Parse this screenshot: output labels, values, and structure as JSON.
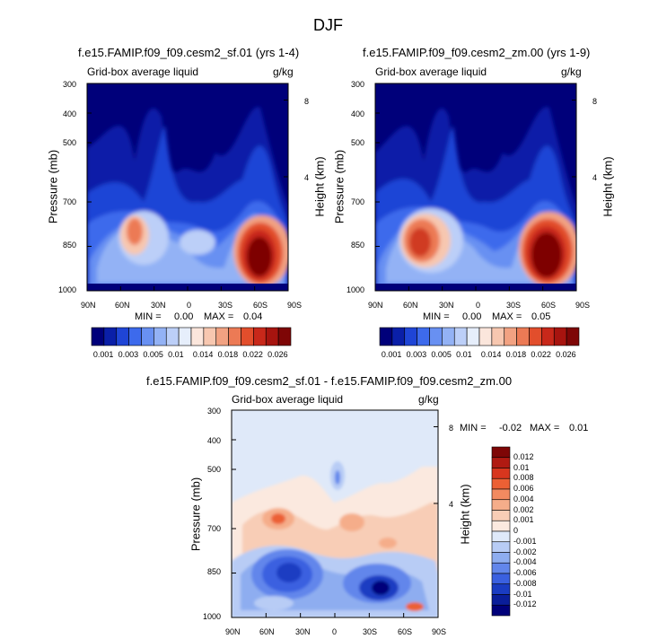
{
  "title": "DJF",
  "chart_data": [
    {
      "type": "heatmap",
      "title": "f.e15.FAMIP.f09_f09.cesm2_sf.01 (yrs 1-4)",
      "subtitle_left": "Grid-box average liquid",
      "units": "g/kg",
      "ylabel": "Pressure (mb)",
      "ylabel_right": "Height (km)",
      "x_ticks": [
        "90N",
        "60N",
        "30N",
        "0",
        "30S",
        "60S",
        "90S"
      ],
      "y_ticks": [
        "300",
        "400",
        "500",
        "700",
        "850",
        "1000"
      ],
      "y_ticks_right": [
        "8",
        "4"
      ],
      "min_label": "MIN =",
      "min_value": "0.00",
      "max_label": "MAX =",
      "max_value": "0.04",
      "features": [
        {
          "lat": 45,
          "p": 840,
          "value": 0.016
        },
        {
          "lat": 15,
          "p": 820,
          "value": 0.009
        },
        {
          "lat": -50,
          "p": 870,
          "value": 0.036
        }
      ]
    },
    {
      "type": "heatmap",
      "title": "f.e15.FAMIP.f09_f09.cesm2_zm.00 (yrs 1-9)",
      "subtitle_left": "Grid-box average liquid",
      "units": "g/kg",
      "ylabel": "Pressure (mb)",
      "ylabel_right": "Height (km)",
      "x_ticks": [
        "90N",
        "60N",
        "30N",
        "0",
        "30S",
        "60S",
        "90S"
      ],
      "y_ticks": [
        "300",
        "400",
        "500",
        "700",
        "850",
        "1000"
      ],
      "y_ticks_right": [
        "8",
        "4"
      ],
      "min_label": "MIN =",
      "min_value": "0.00",
      "max_label": "MAX =",
      "max_value": "0.05",
      "features": [
        {
          "lat": 45,
          "p": 850,
          "value": 0.022
        },
        {
          "lat": 15,
          "p": 830,
          "value": 0.01
        },
        {
          "lat": -50,
          "p": 860,
          "value": 0.04
        }
      ]
    },
    {
      "type": "heatmap",
      "title": "f.e15.FAMIP.f09_f09.cesm2_sf.01 - f.e15.FAMIP.f09_f09.cesm2_zm.00",
      "subtitle_left": "Grid-box average liquid",
      "units": "g/kg",
      "ylabel": "Pressure (mb)",
      "ylabel_right": "Height (km)",
      "x_ticks": [
        "90N",
        "60N",
        "30N",
        "0",
        "30S",
        "60S",
        "90S"
      ],
      "y_ticks": [
        "300",
        "400",
        "500",
        "700",
        "850",
        "1000"
      ],
      "y_ticks_right": [
        "8",
        "4"
      ],
      "min_label": "MIN =",
      "min_value": "-0.02",
      "max_label": "MAX =",
      "max_value": "0.01",
      "features": [
        {
          "lat": 50,
          "p": 860,
          "value": -0.009
        },
        {
          "lat": -45,
          "p": 900,
          "value": -0.012
        },
        {
          "lat": 45,
          "p": 700,
          "value": 0.004
        }
      ]
    }
  ],
  "colorbar_main": {
    "labels": [
      "0.001",
      "0.003",
      "0.005",
      "0.01",
      "0.014",
      "0.018",
      "0.022",
      "0.026"
    ],
    "colors": [
      "#00007a",
      "#0a1fa8",
      "#1f45d6",
      "#3d6aec",
      "#6890f2",
      "#93b2f5",
      "#bccff8",
      "#e6eefb",
      "#fbe6dc",
      "#f7c7b0",
      "#f2a282",
      "#ec7a55",
      "#e24e2c",
      "#c8281a",
      "#a7140f",
      "#7e0606"
    ]
  },
  "colorbar_diff": {
    "labels": [
      "0.012",
      "0.01",
      "0.008",
      "0.006",
      "0.004",
      "0.002",
      "0.001",
      "0",
      "-0.001",
      "-0.002",
      "-0.004",
      "-0.006",
      "-0.008",
      "-0.01",
      "-0.012"
    ],
    "colors": [
      "#7e0606",
      "#b01a12",
      "#d8361e",
      "#ec6034",
      "#f28a60",
      "#f5ad8a",
      "#f8cdb6",
      "#fbe9df",
      "#dfe9f9",
      "#b8ccf5",
      "#8eadf0",
      "#6286eb",
      "#3a60e0",
      "#1a3cc2",
      "#0a1e9a",
      "#00007a"
    ]
  }
}
